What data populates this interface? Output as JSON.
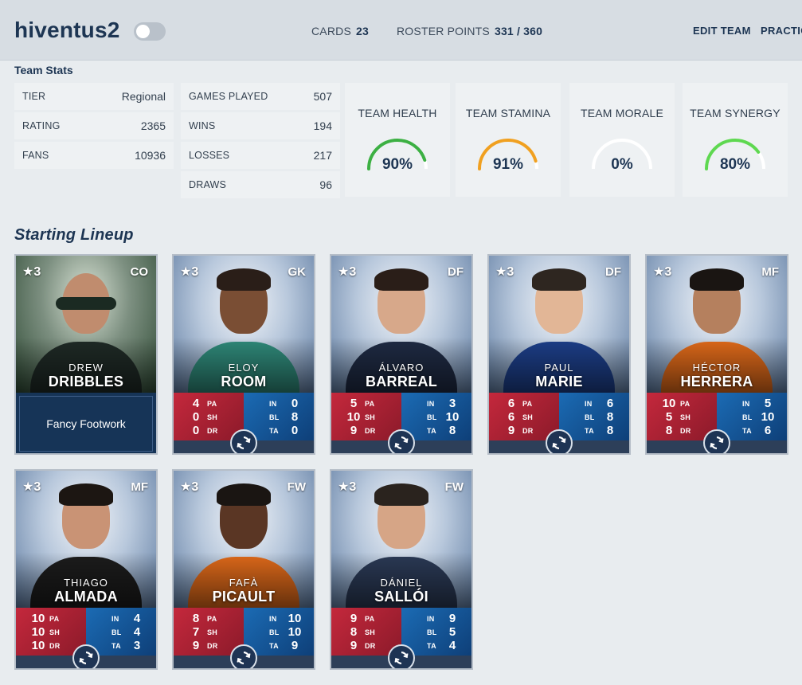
{
  "header": {
    "username": "hiventus2",
    "cards_label": "CARDS",
    "cards_value": "23",
    "roster_label": "ROSTER POINTS",
    "roster_value": "331 / 360",
    "edit_team": "EDIT TEAM",
    "practice": "PRACTIC"
  },
  "team_stats": {
    "title": "Team Stats",
    "col1": [
      {
        "k": "TIER",
        "v": "Regional"
      },
      {
        "k": "RATING",
        "v": "2365"
      },
      {
        "k": "FANS",
        "v": "10936"
      }
    ],
    "col2": [
      {
        "k": "GAMES PLAYED",
        "v": "507"
      },
      {
        "k": "WINS",
        "v": "194"
      },
      {
        "k": "LOSSES",
        "v": "217"
      },
      {
        "k": "DRAWS",
        "v": "96"
      }
    ],
    "gauges": [
      {
        "label": "TEAM HEALTH",
        "value": "90%",
        "pct": 90,
        "color": "#3cb043"
      },
      {
        "label": "TEAM STAMINA",
        "value": "91%",
        "pct": 91,
        "color": "#f0a020"
      },
      {
        "label": "TEAM MORALE",
        "value": "0%",
        "pct": 0,
        "color": "#3cb043"
      },
      {
        "label": "TEAM SYNERGY",
        "value": "80%",
        "pct": 80,
        "color": "#5ed850"
      }
    ]
  },
  "lineup": {
    "title": "Starting Lineup",
    "coach": {
      "rating": "3",
      "pos": "CO",
      "first": "DREW",
      "last": "DRIBBLES",
      "ability": "Fancy Footwork"
    },
    "players": [
      {
        "rating": "3",
        "pos": "GK",
        "first": "ELOY",
        "last": "ROOM",
        "pa": "4",
        "sh": "0",
        "dr": "0",
        "in": "0",
        "bl": "8",
        "ta": "0"
      },
      {
        "rating": "3",
        "pos": "DF",
        "first": "ÁLVARO",
        "last": "BARREAL",
        "pa": "5",
        "sh": "10",
        "dr": "9",
        "in": "3",
        "bl": "10",
        "ta": "8"
      },
      {
        "rating": "3",
        "pos": "DF",
        "first": "PAUL",
        "last": "MARIE",
        "pa": "6",
        "sh": "6",
        "dr": "9",
        "in": "6",
        "bl": "8",
        "ta": "8"
      },
      {
        "rating": "3",
        "pos": "MF",
        "first": "HÉCTOR",
        "last": "HERRERA",
        "pa": "10",
        "sh": "5",
        "dr": "8",
        "in": "5",
        "bl": "10",
        "ta": "6"
      },
      {
        "rating": "3",
        "pos": "MF",
        "first": "THIAGO",
        "last": "ALMADA",
        "pa": "10",
        "sh": "10",
        "dr": "10",
        "in": "4",
        "bl": "4",
        "ta": "3"
      },
      {
        "rating": "3",
        "pos": "FW",
        "first": "FAFÀ",
        "last": "PICAULT",
        "pa": "8",
        "sh": "7",
        "dr": "9",
        "in": "10",
        "bl": "10",
        "ta": "9"
      },
      {
        "rating": "3",
        "pos": "FW",
        "first": "DÁNIEL",
        "last": "SALLÓI",
        "pa": "9",
        "sh": "8",
        "dr": "9",
        "in": "9",
        "bl": "5",
        "ta": "4"
      }
    ],
    "attr_labels": {
      "pa": "PA",
      "sh": "SH",
      "dr": "DR",
      "in": "IN",
      "bl": "BL",
      "ta": "TA"
    }
  }
}
